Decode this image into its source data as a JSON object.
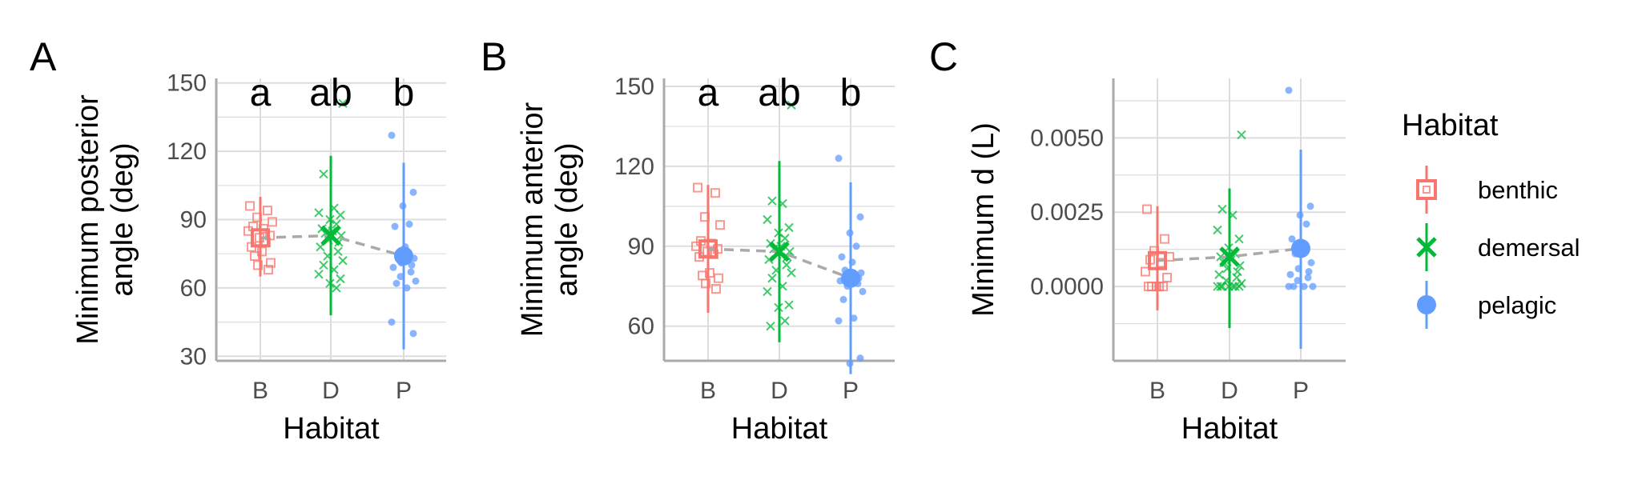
{
  "chart_data": [
    {
      "type": "scatter",
      "panel_label": "A",
      "ylabel_lines": [
        "Minimum posterior",
        "angle (deg)"
      ],
      "xlabel": "Habitat",
      "categories": [
        "B",
        "D",
        "P"
      ],
      "ylim": [
        28,
        152
      ],
      "yticks": [
        30,
        60,
        90,
        120,
        150
      ],
      "ytick_labels": [
        "30",
        "60",
        "90",
        "120",
        "150"
      ],
      "grid": true,
      "significance_letters": [
        "a",
        "ab",
        "b"
      ],
      "summary": [
        {
          "habitat": "benthic",
          "mean": 82,
          "low": 65,
          "high": 100
        },
        {
          "habitat": "demersal",
          "mean": 83,
          "low": 48,
          "high": 118
        },
        {
          "habitat": "pelagic",
          "mean": 74,
          "low": 33,
          "high": 115
        }
      ],
      "points": [
        {
          "habitat": "benthic",
          "values": [
            96,
            94,
            91,
            89,
            87,
            86,
            85,
            83,
            82,
            80,
            78,
            76,
            74,
            71,
            70,
            68
          ]
        },
        {
          "habitat": "demersal",
          "values": [
            141,
            110,
            95,
            93,
            92,
            90,
            88,
            86,
            85,
            84,
            83,
            81,
            80,
            78,
            76,
            74,
            72,
            70,
            68,
            66,
            64,
            62,
            60
          ]
        },
        {
          "habitat": "pelagic",
          "values": [
            127,
            102,
            96,
            88,
            87,
            78,
            75,
            73,
            71,
            70,
            69,
            67,
            65,
            63,
            62,
            60,
            45,
            40
          ]
        }
      ]
    },
    {
      "type": "scatter",
      "panel_label": "B",
      "ylabel_lines": [
        "Minimum anterior",
        "angle (deg)"
      ],
      "xlabel": "Habitat",
      "categories": [
        "B",
        "D",
        "P"
      ],
      "ylim": [
        47,
        153
      ],
      "yticks": [
        60,
        90,
        120,
        150
      ],
      "ytick_labels": [
        "60",
        "90",
        "120",
        "150"
      ],
      "grid": true,
      "significance_letters": [
        "a",
        "ab",
        "b"
      ],
      "summary": [
        {
          "habitat": "benthic",
          "mean": 89,
          "low": 65,
          "high": 113
        },
        {
          "habitat": "demersal",
          "mean": 88,
          "low": 54,
          "high": 122
        },
        {
          "habitat": "pelagic",
          "mean": 78,
          "low": 42,
          "high": 114
        }
      ],
      "points": [
        {
          "habitat": "benthic",
          "values": [
            112,
            110,
            101,
            98,
            92,
            91,
            90,
            89,
            88,
            87,
            86,
            80,
            79,
            78,
            76,
            74
          ]
        },
        {
          "habitat": "demersal",
          "values": [
            143,
            107,
            106,
            100,
            97,
            95,
            93,
            91,
            90,
            89,
            88,
            87,
            86,
            85,
            83,
            81,
            80,
            78,
            75,
            73,
            68,
            67,
            62,
            60
          ]
        },
        {
          "habitat": "pelagic",
          "values": [
            123,
            101,
            95,
            90,
            86,
            84,
            81,
            80,
            79,
            78,
            77,
            76,
            75,
            73,
            70,
            63,
            62,
            48,
            46
          ]
        }
      ]
    },
    {
      "type": "scatter",
      "panel_label": "C",
      "ylabel_lines": [
        "Minimum d (L)"
      ],
      "xlabel": "Habitat",
      "categories": [
        "B",
        "D",
        "P"
      ],
      "ylim": [
        -0.0025,
        0.007
      ],
      "yticks": [
        0.0,
        0.0025,
        0.005
      ],
      "ytick_labels": [
        "0.0000",
        "0.0025",
        "0.0050"
      ],
      "grid": true,
      "significance_letters": [],
      "summary": [
        {
          "habitat": "benthic",
          "mean": 0.00087,
          "low": -0.0008,
          "high": 0.0027
        },
        {
          "habitat": "demersal",
          "mean": 0.001,
          "low": -0.0014,
          "high": 0.0033
        },
        {
          "habitat": "pelagic",
          "mean": 0.00128,
          "low": -0.0021,
          "high": 0.0046
        }
      ],
      "points": [
        {
          "habitat": "benthic",
          "values": [
            0.0026,
            0.0016,
            0.0012,
            0.001,
            0.0009,
            0.0008,
            0.0005,
            0.0003,
            0.0,
            0.0,
            0.0,
            0.0,
            0.0
          ]
        },
        {
          "habitat": "demersal",
          "values": [
            0.0051,
            0.0026,
            0.0024,
            0.0019,
            0.0016,
            0.0013,
            0.0011,
            0.001,
            0.0009,
            0.0008,
            0.0007,
            0.0006,
            0.0005,
            0.0004,
            0.0003,
            0.0002,
            0.0001,
            0.0,
            0.0,
            0.0,
            0.0,
            0.0,
            0.0,
            0.0
          ]
        },
        {
          "habitat": "pelagic",
          "values": [
            0.0066,
            0.0027,
            0.0024,
            0.0021,
            0.0016,
            0.0013,
            0.0011,
            0.0008,
            0.0006,
            0.0005,
            0.0004,
            0.0003,
            0.0002,
            0.0,
            0.0,
            0.0,
            0.0
          ]
        }
      ]
    }
  ],
  "legend": {
    "title": "Habitat",
    "items": [
      {
        "key": "benthic",
        "label": "benthic",
        "color": "#F8766D",
        "shape": "square"
      },
      {
        "key": "demersal",
        "label": "demersal",
        "color": "#00BA38",
        "shape": "cross"
      },
      {
        "key": "pelagic",
        "label": "pelagic",
        "color": "#619CFF",
        "shape": "circle"
      }
    ]
  },
  "colors": {
    "benthic": "#F8766D",
    "demersal": "#00BA38",
    "pelagic": "#619CFF",
    "mean_line": "#AAAAAA",
    "grid": "#DDDDDD",
    "axis": "#AAAAAA"
  }
}
